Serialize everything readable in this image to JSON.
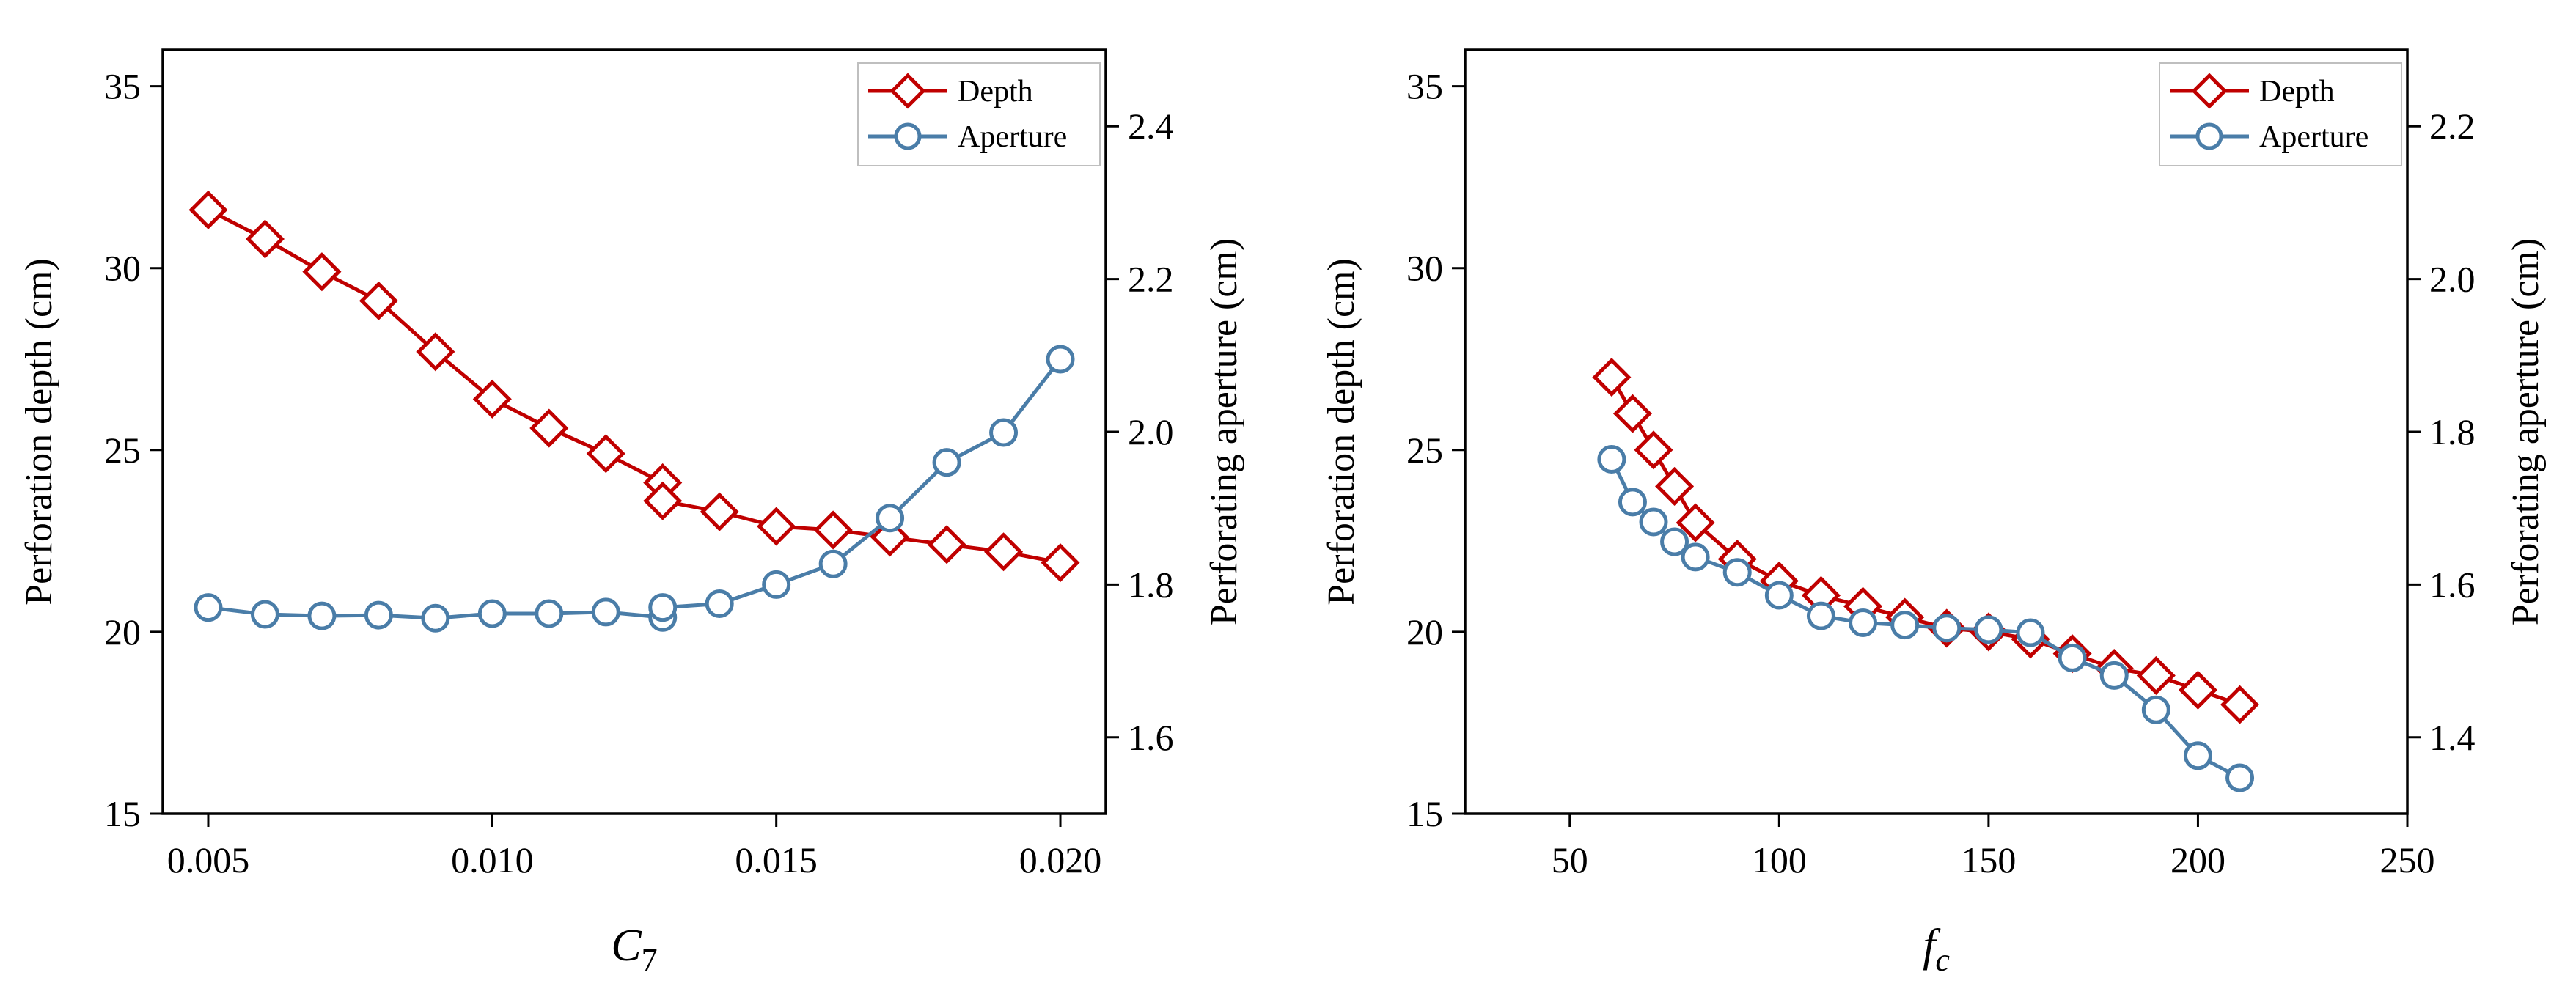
{
  "chart_data": [
    {
      "type": "line",
      "xlabel_symbol": "C",
      "xlabel_subscript": "7",
      "xlim": [
        0.0042,
        0.0208
      ],
      "xticks": [
        0.005,
        0.01,
        0.015,
        0.02
      ],
      "xtick_labels": [
        "0.005",
        "0.010",
        "0.015",
        "0.020"
      ],
      "ylabel_left": "Perforation depth (cm)",
      "ylim_left": [
        15,
        36
      ],
      "yticks_left": [
        15,
        20,
        25,
        30,
        35
      ],
      "ylabel_right": "Perforating aperture (cm)",
      "ylim_right": [
        1.5,
        2.5
      ],
      "yticks_right": [
        1.6,
        1.8,
        2.0,
        2.2,
        2.4
      ],
      "ytick_labels_right": [
        "1.6",
        "1.8",
        "2.0",
        "2.2",
        "2.4"
      ],
      "legend_position": "top-right",
      "series": [
        {
          "name": "Depth",
          "axis": "left",
          "color": "#C00000",
          "marker": "diamond",
          "x": [
            0.005,
            0.006,
            0.007,
            0.008,
            0.009,
            0.01,
            0.011,
            0.012,
            0.013,
            0.013,
            0.014,
            0.015,
            0.016,
            0.017,
            0.018,
            0.019,
            0.02
          ],
          "values": [
            31.6,
            30.8,
            29.9,
            29.1,
            27.7,
            26.4,
            25.6,
            24.9,
            24.1,
            23.6,
            23.3,
            22.9,
            22.8,
            22.6,
            22.4,
            22.2,
            21.9
          ]
        },
        {
          "name": "Aperture",
          "axis": "right",
          "color": "#4A7DA8",
          "marker": "circle",
          "x": [
            0.005,
            0.006,
            0.007,
            0.008,
            0.009,
            0.01,
            0.011,
            0.012,
            0.013,
            0.013,
            0.014,
            0.015,
            0.016,
            0.017,
            0.018,
            0.019,
            0.02
          ],
          "values": [
            1.77,
            1.761,
            1.759,
            1.76,
            1.756,
            1.762,
            1.762,
            1.764,
            1.757,
            1.77,
            1.775,
            1.8,
            1.827,
            1.887,
            1.96,
            1.999,
            2.095
          ]
        }
      ]
    },
    {
      "type": "line",
      "xlabel_symbol": "f",
      "xlabel_subscript": "c",
      "xlim": [
        25,
        250
      ],
      "xticks": [
        50,
        100,
        150,
        200,
        250
      ],
      "xtick_labels": [
        "50",
        "100",
        "150",
        "200",
        "250"
      ],
      "ylabel_left": "Perforation depth (cm)",
      "ylim_left": [
        15,
        36
      ],
      "yticks_left": [
        15,
        20,
        25,
        30,
        35
      ],
      "ylabel_right": "Perforating aperture (cm)",
      "ylim_right": [
        1.3,
        2.3
      ],
      "yticks_right": [
        1.4,
        1.6,
        1.8,
        2.0,
        2.2
      ],
      "ytick_labels_right": [
        "1.4",
        "1.6",
        "1.8",
        "2.0",
        "2.2"
      ],
      "legend_position": "top-right",
      "series": [
        {
          "name": "Depth",
          "axis": "left",
          "color": "#C00000",
          "marker": "diamond",
          "x": [
            60,
            65,
            70,
            75,
            80,
            90,
            100,
            110,
            120,
            130,
            140,
            150,
            160,
            170,
            180,
            190,
            200,
            210
          ],
          "values": [
            27.0,
            26.0,
            25.0,
            24.0,
            23.0,
            22.0,
            21.4,
            21.0,
            20.7,
            20.4,
            20.1,
            20.0,
            19.8,
            19.4,
            19.0,
            18.8,
            18.4,
            18.0
          ]
        },
        {
          "name": "Aperture",
          "axis": "right",
          "color": "#4A7DA8",
          "marker": "circle",
          "x": [
            60,
            65,
            70,
            75,
            80,
            90,
            100,
            110,
            120,
            130,
            140,
            150,
            160,
            170,
            180,
            190,
            200,
            210
          ],
          "values": [
            1.764,
            1.708,
            1.682,
            1.656,
            1.636,
            1.616,
            1.586,
            1.559,
            1.55,
            1.547,
            1.543,
            1.541,
            1.537,
            1.504,
            1.481,
            1.436,
            1.376,
            1.347
          ]
        }
      ]
    }
  ]
}
